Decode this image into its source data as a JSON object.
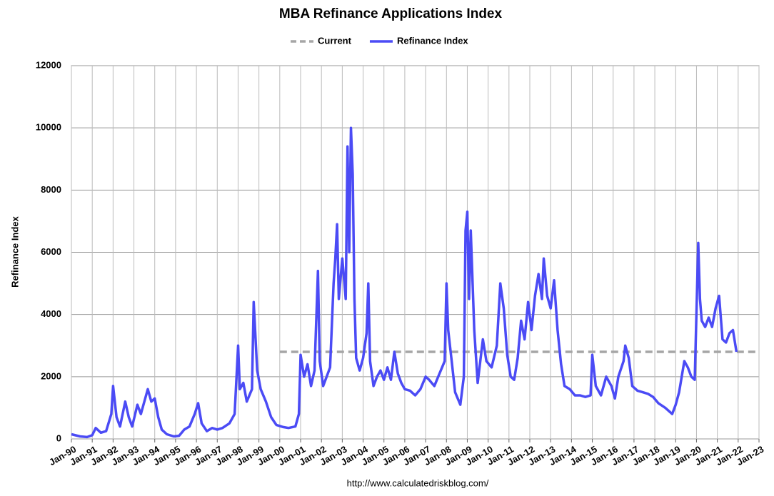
{
  "chart_data": {
    "type": "line",
    "title": "MBA Refinance Applications Index",
    "y_label": "Refinance Index",
    "source": "http://www.calculatedriskblog.com/",
    "xlim": [
      "1990-01",
      "2023-01"
    ],
    "xticks": [
      {
        "value": "1990-01",
        "label": "Jan-90"
      },
      {
        "value": "1991-01",
        "label": "Jan-91"
      },
      {
        "value": "1992-01",
        "label": "Jan-92"
      },
      {
        "value": "1993-01",
        "label": "Jan-93"
      },
      {
        "value": "1994-01",
        "label": "Jan-94"
      },
      {
        "value": "1995-01",
        "label": "Jan-95"
      },
      {
        "value": "1996-01",
        "label": "Jan-96"
      },
      {
        "value": "1997-01",
        "label": "Jan-97"
      },
      {
        "value": "1998-01",
        "label": "Jan-98"
      },
      {
        "value": "1999-01",
        "label": "Jan-99"
      },
      {
        "value": "2000-01",
        "label": "Jan-00"
      },
      {
        "value": "2001-01",
        "label": "Jan-01"
      },
      {
        "value": "2002-01",
        "label": "Jan-02"
      },
      {
        "value": "2003-01",
        "label": "Jan-03"
      },
      {
        "value": "2004-01",
        "label": "Jan-04"
      },
      {
        "value": "2005-01",
        "label": "Jan-05"
      },
      {
        "value": "2006-01",
        "label": "Jan-06"
      },
      {
        "value": "2007-01",
        "label": "Jan-07"
      },
      {
        "value": "2008-01",
        "label": "Jan-08"
      },
      {
        "value": "2009-01",
        "label": "Jan-09"
      },
      {
        "value": "2010-01",
        "label": "Jan-10"
      },
      {
        "value": "2011-01",
        "label": "Jan-11"
      },
      {
        "value": "2012-01",
        "label": "Jan-12"
      },
      {
        "value": "2013-01",
        "label": "Jan-13"
      },
      {
        "value": "2014-01",
        "label": "Jan-14"
      },
      {
        "value": "2015-01",
        "label": "Jan-15"
      },
      {
        "value": "2016-01",
        "label": "Jan-16"
      },
      {
        "value": "2017-01",
        "label": "Jan-17"
      },
      {
        "value": "2018-01",
        "label": "Jan-18"
      },
      {
        "value": "2019-01",
        "label": "Jan-19"
      },
      {
        "value": "2020-01",
        "label": "Jan-20"
      },
      {
        "value": "2021-01",
        "label": "Jan-21"
      },
      {
        "value": "2022-01",
        "label": "Jan-22"
      },
      {
        "value": "2023-01",
        "label": "Jan-23"
      }
    ],
    "ylim": [
      0,
      12000
    ],
    "yticks": [
      0,
      2000,
      4000,
      6000,
      8000,
      10000,
      12000
    ],
    "grid": true,
    "legend": "top",
    "series": [
      {
        "name": "Current",
        "color": "#a6a6a6",
        "dash": "dashed",
        "x": [
          "2000-01",
          "2023-01"
        ],
        "values": [
          2800,
          2800
        ]
      },
      {
        "name": "Refinance Index",
        "color": "#4b4bf5",
        "dash": "solid",
        "x": [
          "1990-01",
          "1990-06",
          "1990-10",
          "1991-01",
          "1991-03",
          "1991-06",
          "1991-09",
          "1991-12",
          "1992-01",
          "1992-03",
          "1992-05",
          "1992-08",
          "1992-10",
          "1992-12",
          "1993-03",
          "1993-05",
          "1993-09",
          "1993-11",
          "1994-01",
          "1994-03",
          "1994-05",
          "1994-08",
          "1994-12",
          "1995-03",
          "1995-06",
          "1995-09",
          "1995-12",
          "1996-02",
          "1996-04",
          "1996-07",
          "1996-10",
          "1997-01",
          "1997-04",
          "1997-08",
          "1997-11",
          "1998-01",
          "1998-02",
          "1998-04",
          "1998-06",
          "1998-09",
          "1998-10",
          "1998-12",
          "1999-02",
          "1999-05",
          "1999-08",
          "1999-11",
          "2000-03",
          "2000-06",
          "2000-10",
          "2000-12",
          "2001-01",
          "2001-03",
          "2001-05",
          "2001-07",
          "2001-09",
          "2001-11",
          "2001-12",
          "2002-02",
          "2002-04",
          "2002-06",
          "2002-08",
          "2002-09",
          "2002-10",
          "2002-11",
          "2003-01",
          "2003-03",
          "2003-04",
          "2003-05",
          "2003-06",
          "2003-07",
          "2003-08",
          "2003-09",
          "2003-11",
          "2004-01",
          "2004-03",
          "2004-04",
          "2004-05",
          "2004-07",
          "2004-09",
          "2004-11",
          "2005-01",
          "2005-03",
          "2005-05",
          "2005-07",
          "2005-09",
          "2005-11",
          "2006-01",
          "2006-04",
          "2006-07",
          "2006-10",
          "2007-01",
          "2007-03",
          "2007-06",
          "2007-09",
          "2007-12",
          "2008-01",
          "2008-02",
          "2008-04",
          "2008-06",
          "2008-09",
          "2008-11",
          "2008-12",
          "2009-01",
          "2009-02",
          "2009-03",
          "2009-05",
          "2009-07",
          "2009-10",
          "2009-12",
          "2010-03",
          "2010-06",
          "2010-08",
          "2010-10",
          "2010-12",
          "2011-02",
          "2011-04",
          "2011-06",
          "2011-08",
          "2011-10",
          "2011-12",
          "2012-02",
          "2012-04",
          "2012-06",
          "2012-08",
          "2012-09",
          "2012-11",
          "2013-01",
          "2013-03",
          "2013-05",
          "2013-07",
          "2013-09",
          "2013-12",
          "2014-03",
          "2014-06",
          "2014-09",
          "2014-12",
          "2015-01",
          "2015-03",
          "2015-06",
          "2015-09",
          "2015-12",
          "2016-02",
          "2016-04",
          "2016-07",
          "2016-08",
          "2016-10",
          "2016-12",
          "2017-03",
          "2017-06",
          "2017-09",
          "2017-12",
          "2018-03",
          "2018-07",
          "2018-11",
          "2019-01",
          "2019-03",
          "2019-06",
          "2019-08",
          "2019-10",
          "2019-12",
          "2020-02",
          "2020-03",
          "2020-04",
          "2020-06",
          "2020-08",
          "2020-10",
          "2020-12",
          "2021-02",
          "2021-04",
          "2021-06",
          "2021-08",
          "2021-10",
          "2021-12"
        ],
        "values": [
          150,
          80,
          60,
          120,
          350,
          200,
          250,
          800,
          1700,
          700,
          400,
          1200,
          700,
          400,
          1100,
          800,
          1600,
          1200,
          1300,
          700,
          300,
          150,
          80,
          100,
          300,
          400,
          800,
          1150,
          500,
          250,
          350,
          300,
          350,
          500,
          800,
          3000,
          1600,
          1800,
          1200,
          1600,
          4400,
          2200,
          1600,
          1200,
          700,
          450,
          380,
          350,
          400,
          800,
          2700,
          2000,
          2400,
          1700,
          2200,
          5400,
          2500,
          1700,
          2000,
          2300,
          5000,
          5800,
          6900,
          4500,
          5800,
          4500,
          9400,
          6000,
          10000,
          8500,
          4500,
          2600,
          2200,
          2600,
          3400,
          5000,
          2500,
          1700,
          2000,
          2200,
          1900,
          2300,
          1900,
          2800,
          2100,
          1800,
          1600,
          1550,
          1400,
          1600,
          2000,
          1900,
          1700,
          2100,
          2500,
          5000,
          3500,
          2500,
          1500,
          1100,
          2000,
          6700,
          7300,
          4500,
          6700,
          3500,
          1800,
          3200,
          2500,
          2300,
          3000,
          5000,
          4200,
          2700,
          2000,
          1900,
          2600,
          3800,
          3200,
          4400,
          3500,
          4600,
          5300,
          4500,
          5800,
          4600,
          4200,
          5100,
          3500,
          2400,
          1700,
          1600,
          1400,
          1400,
          1350,
          1400,
          2700,
          1700,
          1400,
          2000,
          1700,
          1300,
          2000,
          2500,
          3000,
          2600,
          1700,
          1550,
          1500,
          1450,
          1350,
          1150,
          1000,
          800,
          1100,
          1500,
          2500,
          2300,
          2000,
          1900,
          6300,
          4500,
          3800,
          3600,
          3900,
          3600,
          4200,
          4600,
          3200,
          3100,
          3400,
          3500,
          2800
        ]
      }
    ]
  }
}
